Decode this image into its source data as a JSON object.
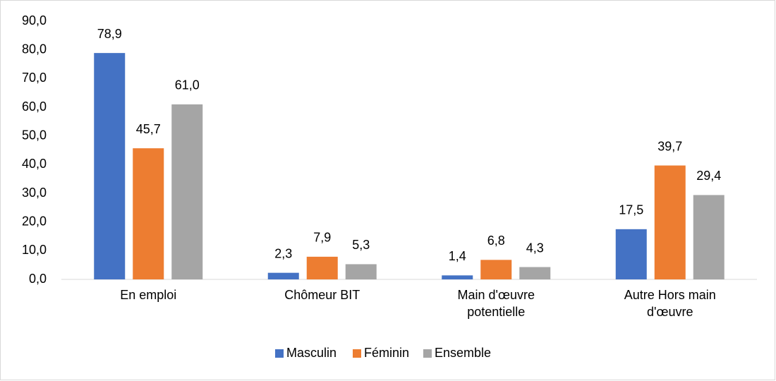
{
  "chart_data": {
    "type": "bar",
    "categories": [
      "En emploi",
      "Chômeur BIT",
      "Main d'œuvre potentielle",
      "Autre Hors main d'œuvre"
    ],
    "series": [
      {
        "name": "Masculin",
        "color": "#4472c4",
        "values": [
          78.9,
          2.3,
          1.4,
          17.5
        ],
        "value_labels": [
          "78,9",
          "2,3",
          "1,4",
          "17,5"
        ]
      },
      {
        "name": "Féminin",
        "color": "#ed7d31",
        "values": [
          45.7,
          7.9,
          6.8,
          39.7
        ],
        "value_labels": [
          "45,7",
          "7,9",
          "6,8",
          "39,7"
        ]
      },
      {
        "name": "Ensemble",
        "color": "#a5a5a5",
        "values": [
          61.0,
          5.3,
          4.3,
          29.4
        ],
        "value_labels": [
          "61,0",
          "5,3",
          "4,3",
          "29,4"
        ]
      }
    ],
    "ylim": [
      0,
      90
    ],
    "yticks": [
      {
        "value": 0,
        "label": "0,0"
      },
      {
        "value": 10,
        "label": "10,0"
      },
      {
        "value": 20,
        "label": "20,0"
      },
      {
        "value": 30,
        "label": "30,0"
      },
      {
        "value": 40,
        "label": "40,0"
      },
      {
        "value": 50,
        "label": "50,0"
      },
      {
        "value": 60,
        "label": "60,0"
      },
      {
        "value": 70,
        "label": "70,0"
      },
      {
        "value": 80,
        "label": "80,0"
      },
      {
        "value": 90,
        "label": "90,0"
      }
    ],
    "grid": false,
    "legend": "bottom"
  }
}
